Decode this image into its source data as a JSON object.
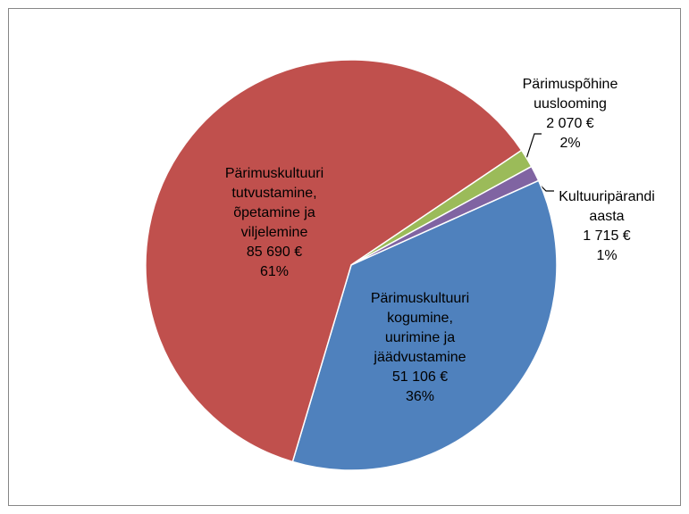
{
  "chart_data": {
    "type": "pie",
    "categories": [
      [
        "Pärimuskultuuri",
        "kogumine,",
        "uurimine ja",
        "jäädvustamine"
      ],
      [
        "Pärimuskultuuri",
        "tutvustamine,",
        "õpetamine ja",
        "viljelemine"
      ],
      [
        "Pärimuspõhine",
        "uuslooming"
      ],
      [
        "Kultuuripärandi",
        "aasta"
      ]
    ],
    "values": [
      51106,
      85690,
      2070,
      1715
    ],
    "value_labels": [
      "51 106 €",
      "85 690 €",
      "2 070 €",
      "1 715 €"
    ],
    "percent_labels": [
      "36%",
      "61%",
      "2%",
      "1%"
    ],
    "colors": [
      "#4f81bd",
      "#c0504d",
      "#9bbb59",
      "#8064a2"
    ]
  }
}
